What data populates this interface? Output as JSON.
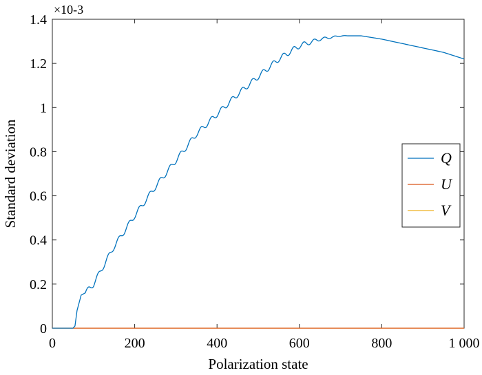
{
  "chart_data": {
    "type": "line",
    "title": "",
    "xlabel": "Polarization state",
    "ylabel": "Standard deviation",
    "xlim": [
      0,
      1000
    ],
    "ylim": [
      0,
      1.4
    ],
    "y_exponent_label": "×10-3",
    "x_tick_labels": [
      "0",
      "200",
      "400",
      "600",
      "800",
      "1 000"
    ],
    "y_tick_labels": [
      "0",
      "0.2",
      "0.4",
      "0.6",
      "0.8",
      "1",
      "1.2",
      "1.4"
    ],
    "legend_position": "right",
    "series": [
      {
        "name": "Q",
        "color": "#0072BD",
        "x": [
          0,
          50,
          55,
          60,
          70,
          80,
          100,
          150,
          200,
          250,
          300,
          350,
          400,
          450,
          500,
          550,
          600,
          650,
          700,
          750,
          800,
          850,
          900,
          950,
          1000
        ],
        "y": [
          0,
          0,
          0.01,
          0.08,
          0.15,
          0.16,
          0.2,
          0.37,
          0.51,
          0.64,
          0.76,
          0.88,
          0.97,
          1.06,
          1.14,
          1.22,
          1.28,
          1.31,
          1.325,
          1.325,
          1.31,
          1.29,
          1.27,
          1.25,
          1.22
        ]
      },
      {
        "name": "U",
        "color": "#D95319",
        "x": [
          0,
          1000
        ],
        "y": [
          0,
          0
        ]
      },
      {
        "name": "V",
        "color": "#EDB120",
        "x": [
          0,
          1000
        ],
        "y": [
          0,
          0
        ]
      }
    ]
  }
}
